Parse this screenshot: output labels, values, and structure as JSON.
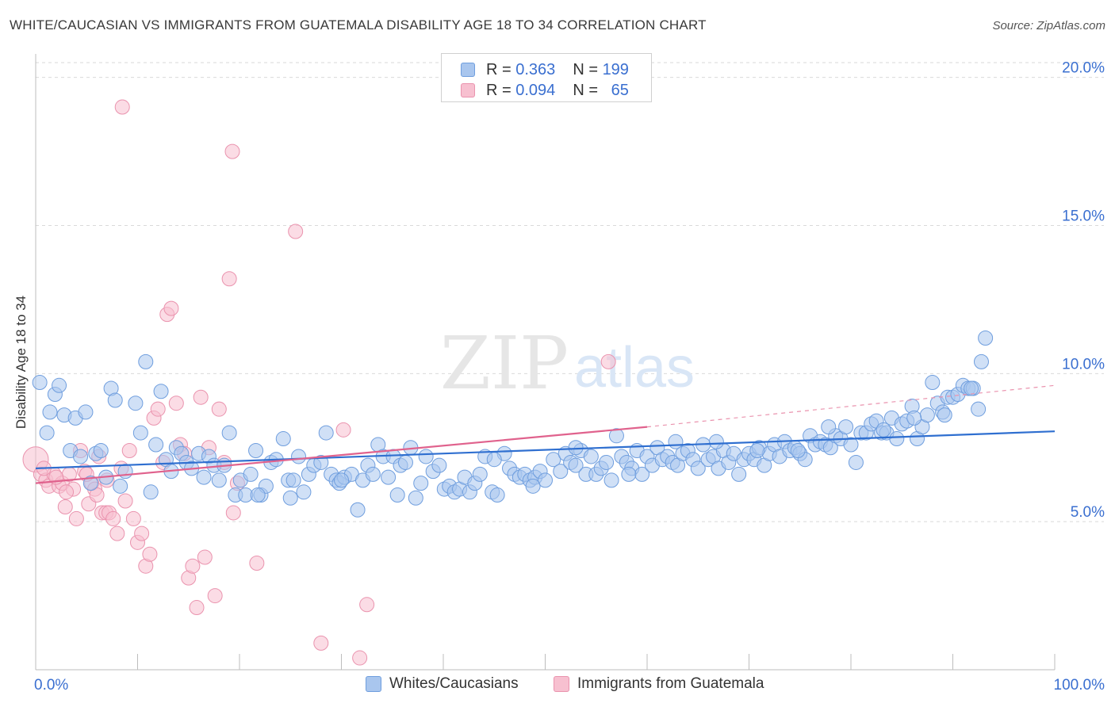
{
  "title": "WHITE/CAUCASIAN VS IMMIGRANTS FROM GUATEMALA DISABILITY AGE 18 TO 34 CORRELATION CHART",
  "source": "Source: ZipAtlas.com",
  "watermark": {
    "zip": "ZIP",
    "atlas": "atlas"
  },
  "legend": {
    "series1": {
      "r_label": "R =",
      "r_value": "0.363",
      "n_label": "N =",
      "n_value": "199"
    },
    "series2": {
      "r_label": "R =",
      "r_value": "0.094",
      "n_label": "N =",
      "n_value": "65"
    }
  },
  "bottom_legend": {
    "series1": "Whites/Caucasians",
    "series2": "Immigrants from Guatemala"
  },
  "colors": {
    "blue_fill": "#a9c6ee",
    "blue_stroke": "#6f9ede",
    "blue_line": "#2f6fd0",
    "pink_fill": "#f7c0d0",
    "pink_stroke": "#ea93ae",
    "pink_line": "#e0628d",
    "axis_text": "#3a6fd0",
    "grid": "#d9d9d9"
  },
  "chart_data": {
    "type": "scatter",
    "title": "WHITE/CAUCASIAN VS IMMIGRANTS FROM GUATEMALA DISABILITY AGE 18 TO 34 CORRELATION CHART",
    "xlabel": "",
    "ylabel": "Disability Age 18 to 34",
    "xlim": [
      0,
      100
    ],
    "ylim": [
      0,
      20.5
    ],
    "x_tick_labels": [
      "0.0%",
      "100.0%"
    ],
    "y_ticks": [
      5,
      10,
      15,
      20
    ],
    "y_tick_labels": [
      "5.0%",
      "10.0%",
      "15.0%",
      "20.0%"
    ],
    "grid": true,
    "legend_position": "top-center",
    "series": [
      {
        "name": "Whites/Caucasians",
        "r": 0.363,
        "n": 199,
        "trend": {
          "x": [
            0,
            100
          ],
          "y": [
            6.8,
            8.05
          ]
        },
        "points": [
          [
            0.4,
            9.7
          ],
          [
            1.1,
            8.0
          ],
          [
            1.4,
            8.7
          ],
          [
            1.9,
            9.3
          ],
          [
            2.3,
            9.6
          ],
          [
            2.8,
            8.6
          ],
          [
            3.4,
            7.4
          ],
          [
            3.9,
            8.5
          ],
          [
            4.4,
            7.2
          ],
          [
            4.9,
            8.7
          ],
          [
            5.4,
            6.3
          ],
          [
            5.9,
            7.3
          ],
          [
            6.4,
            7.4
          ],
          [
            6.9,
            6.5
          ],
          [
            7.4,
            9.5
          ],
          [
            7.8,
            9.1
          ],
          [
            8.3,
            6.2
          ],
          [
            8.8,
            6.7
          ],
          [
            9.8,
            9.0
          ],
          [
            10.3,
            8.0
          ],
          [
            10.8,
            10.4
          ],
          [
            11.3,
            6.0
          ],
          [
            11.8,
            7.6
          ],
          [
            12.3,
            9.4
          ],
          [
            12.8,
            7.1
          ],
          [
            13.3,
            6.7
          ],
          [
            13.8,
            7.5
          ],
          [
            14.3,
            7.3
          ],
          [
            14.8,
            7.0
          ],
          [
            15.3,
            6.8
          ],
          [
            16.0,
            7.3
          ],
          [
            16.5,
            6.5
          ],
          [
            17.0,
            7.2
          ],
          [
            17.5,
            6.9
          ],
          [
            18.0,
            6.4
          ],
          [
            18.5,
            6.9
          ],
          [
            19.0,
            8.0
          ],
          [
            19.6,
            5.9
          ],
          [
            20.1,
            6.4
          ],
          [
            20.6,
            5.9
          ],
          [
            21.1,
            6.6
          ],
          [
            21.6,
            7.4
          ],
          [
            22.1,
            5.9
          ],
          [
            22.6,
            6.2
          ],
          [
            23.1,
            7.0
          ],
          [
            23.6,
            7.1
          ],
          [
            24.3,
            7.8
          ],
          [
            24.8,
            6.4
          ],
          [
            25.3,
            6.4
          ],
          [
            25.8,
            7.2
          ],
          [
            26.3,
            6.0
          ],
          [
            26.8,
            6.6
          ],
          [
            27.3,
            6.9
          ],
          [
            28.0,
            7.0
          ],
          [
            28.5,
            8.0
          ],
          [
            29.0,
            6.6
          ],
          [
            29.5,
            6.4
          ],
          [
            29.8,
            6.3
          ],
          [
            30.3,
            6.5
          ],
          [
            31.0,
            6.6
          ],
          [
            31.6,
            5.4
          ],
          [
            32.1,
            6.4
          ],
          [
            32.6,
            6.9
          ],
          [
            33.1,
            6.6
          ],
          [
            33.6,
            7.6
          ],
          [
            34.1,
            7.2
          ],
          [
            34.6,
            6.5
          ],
          [
            35.1,
            7.2
          ],
          [
            35.8,
            6.9
          ],
          [
            36.3,
            7.0
          ],
          [
            36.8,
            7.5
          ],
          [
            37.3,
            5.8
          ],
          [
            37.8,
            6.3
          ],
          [
            38.3,
            7.2
          ],
          [
            39.0,
            6.7
          ],
          [
            39.6,
            6.9
          ],
          [
            40.1,
            6.1
          ],
          [
            40.6,
            6.2
          ],
          [
            41.1,
            6.0
          ],
          [
            41.6,
            6.1
          ],
          [
            42.1,
            6.5
          ],
          [
            42.6,
            6.0
          ],
          [
            43.1,
            6.3
          ],
          [
            43.6,
            6.6
          ],
          [
            44.1,
            7.2
          ],
          [
            44.8,
            6.0
          ],
          [
            45.3,
            5.9
          ],
          [
            46.0,
            7.3
          ],
          [
            46.5,
            6.8
          ],
          [
            47.0,
            6.6
          ],
          [
            47.5,
            6.5
          ],
          [
            48.0,
            6.6
          ],
          [
            48.5,
            6.4
          ],
          [
            49.0,
            6.5
          ],
          [
            49.5,
            6.7
          ],
          [
            50.0,
            6.4
          ],
          [
            50.8,
            7.1
          ],
          [
            51.5,
            6.7
          ],
          [
            52.0,
            7.3
          ],
          [
            52.5,
            7.0
          ],
          [
            53.0,
            6.9
          ],
          [
            53.5,
            7.4
          ],
          [
            54.0,
            6.6
          ],
          [
            54.5,
            7.2
          ],
          [
            55.0,
            6.6
          ],
          [
            55.5,
            6.8
          ],
          [
            56.0,
            7.0
          ],
          [
            56.5,
            6.4
          ],
          [
            57.0,
            7.9
          ],
          [
            57.5,
            7.2
          ],
          [
            58.0,
            7.0
          ],
          [
            58.5,
            6.8
          ],
          [
            59.0,
            7.4
          ],
          [
            59.5,
            6.6
          ],
          [
            60.0,
            7.2
          ],
          [
            60.5,
            6.9
          ],
          [
            61.0,
            7.5
          ],
          [
            61.5,
            7.1
          ],
          [
            62.0,
            7.2
          ],
          [
            62.5,
            7.0
          ],
          [
            63.0,
            6.9
          ],
          [
            63.5,
            7.3
          ],
          [
            64.0,
            7.4
          ],
          [
            64.5,
            7.1
          ],
          [
            65.0,
            6.8
          ],
          [
            65.5,
            7.6
          ],
          [
            66.0,
            7.1
          ],
          [
            66.5,
            7.2
          ],
          [
            67.0,
            6.8
          ],
          [
            67.5,
            7.4
          ],
          [
            68.0,
            7.0
          ],
          [
            68.5,
            7.3
          ],
          [
            69.0,
            6.6
          ],
          [
            69.5,
            7.1
          ],
          [
            70.0,
            7.3
          ],
          [
            70.5,
            7.1
          ],
          [
            71.0,
            7.5
          ],
          [
            71.5,
            6.9
          ],
          [
            72.0,
            7.3
          ],
          [
            72.5,
            7.6
          ],
          [
            73.0,
            7.2
          ],
          [
            73.5,
            7.7
          ],
          [
            74.0,
            7.4
          ],
          [
            74.5,
            7.5
          ],
          [
            75.0,
            7.3
          ],
          [
            75.5,
            7.1
          ],
          [
            76.0,
            7.9
          ],
          [
            76.5,
            7.6
          ],
          [
            77.0,
            7.7
          ],
          [
            77.5,
            7.6
          ],
          [
            78.0,
            7.5
          ],
          [
            78.5,
            7.9
          ],
          [
            79.0,
            7.8
          ],
          [
            79.5,
            8.2
          ],
          [
            80.0,
            7.6
          ],
          [
            80.5,
            7.0
          ],
          [
            81.0,
            8.0
          ],
          [
            81.5,
            8.0
          ],
          [
            82.0,
            8.3
          ],
          [
            82.5,
            8.4
          ],
          [
            83.0,
            8.0
          ],
          [
            83.5,
            8.0
          ],
          [
            84.0,
            8.5
          ],
          [
            84.5,
            7.8
          ],
          [
            85.0,
            8.3
          ],
          [
            85.5,
            8.4
          ],
          [
            86.0,
            8.9
          ],
          [
            86.5,
            7.8
          ],
          [
            87.0,
            8.2
          ],
          [
            87.5,
            8.6
          ],
          [
            88.0,
            9.7
          ],
          [
            88.5,
            9.0
          ],
          [
            89.0,
            8.7
          ],
          [
            89.5,
            9.2
          ],
          [
            90.0,
            9.2
          ],
          [
            90.5,
            9.3
          ],
          [
            91.0,
            9.6
          ],
          [
            91.5,
            9.5
          ],
          [
            92.0,
            9.5
          ],
          [
            92.5,
            8.8
          ],
          [
            92.8,
            10.4
          ],
          [
            93.2,
            11.2
          ],
          [
            25.0,
            5.8
          ],
          [
            30.0,
            6.4
          ],
          [
            35.5,
            5.9
          ],
          [
            45.0,
            7.1
          ],
          [
            48.8,
            6.2
          ],
          [
            53.0,
            7.5
          ],
          [
            58.2,
            6.6
          ],
          [
            62.8,
            7.7
          ],
          [
            66.8,
            7.7
          ],
          [
            70.8,
            7.4
          ],
          [
            74.8,
            7.4
          ],
          [
            77.8,
            8.2
          ],
          [
            83.2,
            8.1
          ],
          [
            86.2,
            8.5
          ],
          [
            89.2,
            8.6
          ],
          [
            91.8,
            9.5
          ],
          [
            21.8,
            5.9
          ]
        ]
      },
      {
        "name": "Immigrants from Guatemala",
        "r": 0.094,
        "n": 65,
        "trend": {
          "x": [
            0,
            60
          ],
          "y": [
            6.3,
            8.2
          ],
          "dashed_to": [
            100,
            9.6
          ]
        },
        "points": [
          [
            0.0,
            7.1
          ],
          [
            0.5,
            6.6
          ],
          [
            1.0,
            6.4
          ],
          [
            1.3,
            6.2
          ],
          [
            1.8,
            6.6
          ],
          [
            2.3,
            6.2
          ],
          [
            2.6,
            6.3
          ],
          [
            2.9,
            5.5
          ],
          [
            3.3,
            6.6
          ],
          [
            3.7,
            6.1
          ],
          [
            4.0,
            5.1
          ],
          [
            4.4,
            7.4
          ],
          [
            4.8,
            6.7
          ],
          [
            5.2,
            5.6
          ],
          [
            5.5,
            6.3
          ],
          [
            5.8,
            6.1
          ],
          [
            6.2,
            7.2
          ],
          [
            6.5,
            5.3
          ],
          [
            6.9,
            5.3
          ],
          [
            7.2,
            5.3
          ],
          [
            7.6,
            5.1
          ],
          [
            8.0,
            4.6
          ],
          [
            8.4,
            6.8
          ],
          [
            8.8,
            5.7
          ],
          [
            9.2,
            7.4
          ],
          [
            9.6,
            5.1
          ],
          [
            10.0,
            4.3
          ],
          [
            10.4,
            4.6
          ],
          [
            10.8,
            3.5
          ],
          [
            11.2,
            3.9
          ],
          [
            11.6,
            8.5
          ],
          [
            12.0,
            8.8
          ],
          [
            12.5,
            7.0
          ],
          [
            12.9,
            12.0
          ],
          [
            13.3,
            12.2
          ],
          [
            13.8,
            9.0
          ],
          [
            14.2,
            7.6
          ],
          [
            14.6,
            7.3
          ],
          [
            15.0,
            3.1
          ],
          [
            15.4,
            3.5
          ],
          [
            15.8,
            2.1
          ],
          [
            16.2,
            9.2
          ],
          [
            16.6,
            3.8
          ],
          [
            17.0,
            7.5
          ],
          [
            17.6,
            2.5
          ],
          [
            18.0,
            8.8
          ],
          [
            18.5,
            7.0
          ],
          [
            19.0,
            13.2
          ],
          [
            19.4,
            5.3
          ],
          [
            19.8,
            6.3
          ],
          [
            19.3,
            17.5
          ],
          [
            21.7,
            3.6
          ],
          [
            25.5,
            14.8
          ],
          [
            28.0,
            0.9
          ],
          [
            30.2,
            8.1
          ],
          [
            31.8,
            0.4
          ],
          [
            32.5,
            2.2
          ],
          [
            56.2,
            10.4
          ],
          [
            8.5,
            19.0
          ],
          [
            0.8,
            6.8
          ],
          [
            2.0,
            6.5
          ],
          [
            3.0,
            6.0
          ],
          [
            5.0,
            6.6
          ],
          [
            6.0,
            5.9
          ],
          [
            7.0,
            6.4
          ]
        ]
      }
    ]
  }
}
